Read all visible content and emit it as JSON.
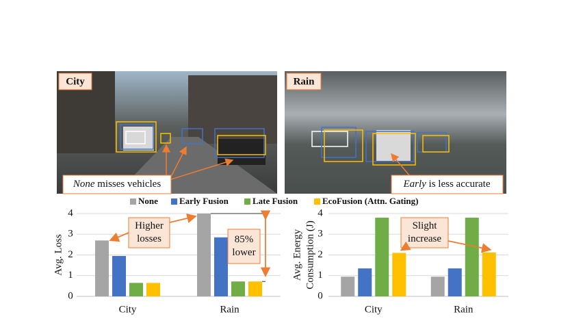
{
  "panels": [
    {
      "label": "City",
      "annotation": {
        "emphasis": "None",
        "text": "misses vehicles"
      }
    },
    {
      "label": "Rain",
      "annotation": {
        "emphasis": "Early",
        "text": "is less accurate"
      }
    }
  ],
  "chart_data": [
    {
      "type": "bar",
      "y_label": [
        "Avg. Loss"
      ],
      "categories": [
        "City",
        "Rain"
      ],
      "series": [
        {
          "name": "None",
          "color": "#a5a5a5",
          "values": [
            2.7,
            4.0
          ]
        },
        {
          "name": "Early Fusion",
          "color": "#4472c4",
          "values": [
            1.95,
            2.85
          ]
        },
        {
          "name": "Late Fusion",
          "color": "#70ad47",
          "values": [
            0.65,
            0.72
          ]
        },
        {
          "name": "EcoFusion (Attn. Gating)",
          "color": "#ffc000",
          "values": [
            0.65,
            0.72
          ]
        }
      ],
      "ylim": [
        0,
        4
      ],
      "yticks": [
        0,
        1,
        2,
        3,
        4
      ],
      "grid": true,
      "annotations": [
        [
          "Higher",
          "losses"
        ],
        [
          "85%",
          "lower"
        ]
      ]
    },
    {
      "type": "bar",
      "y_label": [
        "Avg. Energy",
        "Consumption (J)"
      ],
      "categories": [
        "City",
        "Rain"
      ],
      "series": [
        {
          "color": "#a5a5a5",
          "values": [
            0.95,
            0.95
          ]
        },
        {
          "color": "#4472c4",
          "values": [
            1.35,
            1.35
          ]
        },
        {
          "color": "#70ad47",
          "values": [
            3.8,
            3.8
          ]
        },
        {
          "color": "#ffc000",
          "values": [
            2.1,
            2.12
          ]
        }
      ],
      "ylim": [
        0,
        4
      ],
      "yticks": [
        0,
        1,
        2,
        3,
        4
      ],
      "grid": true,
      "annotations": [
        [
          "Slight",
          "increase"
        ]
      ]
    }
  ]
}
